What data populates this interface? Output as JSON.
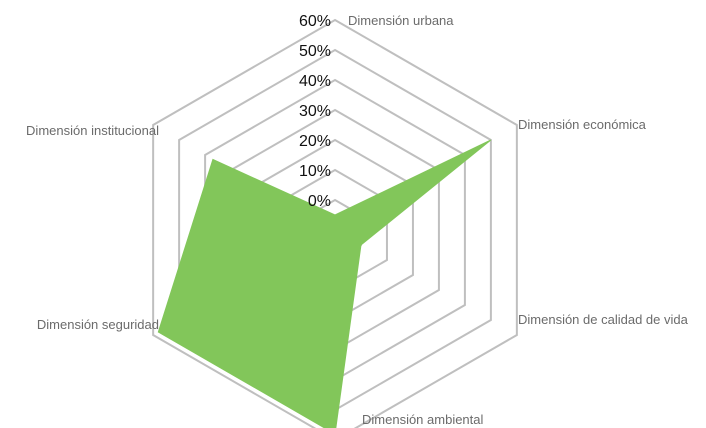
{
  "chart_data": {
    "type": "radar",
    "title": "",
    "axes": [
      "Dimensión urbana",
      "Dimensión económica",
      "Dimensión de calidad de vida",
      "Dimensión ambiental",
      "Dimensión seguridad",
      "Dimensión institucional"
    ],
    "tick_labels": [
      "0%",
      "10%",
      "20%",
      "30%",
      "40%",
      "50%",
      "60%"
    ],
    "rmin": -10,
    "rmax": 60,
    "series": [
      {
        "values": [
          -5,
          50,
          0,
          58,
          58,
          37
        ],
        "color": "#82c65a"
      }
    ],
    "grid": true,
    "grid_color": "#bfbfbf",
    "legend": "none"
  }
}
